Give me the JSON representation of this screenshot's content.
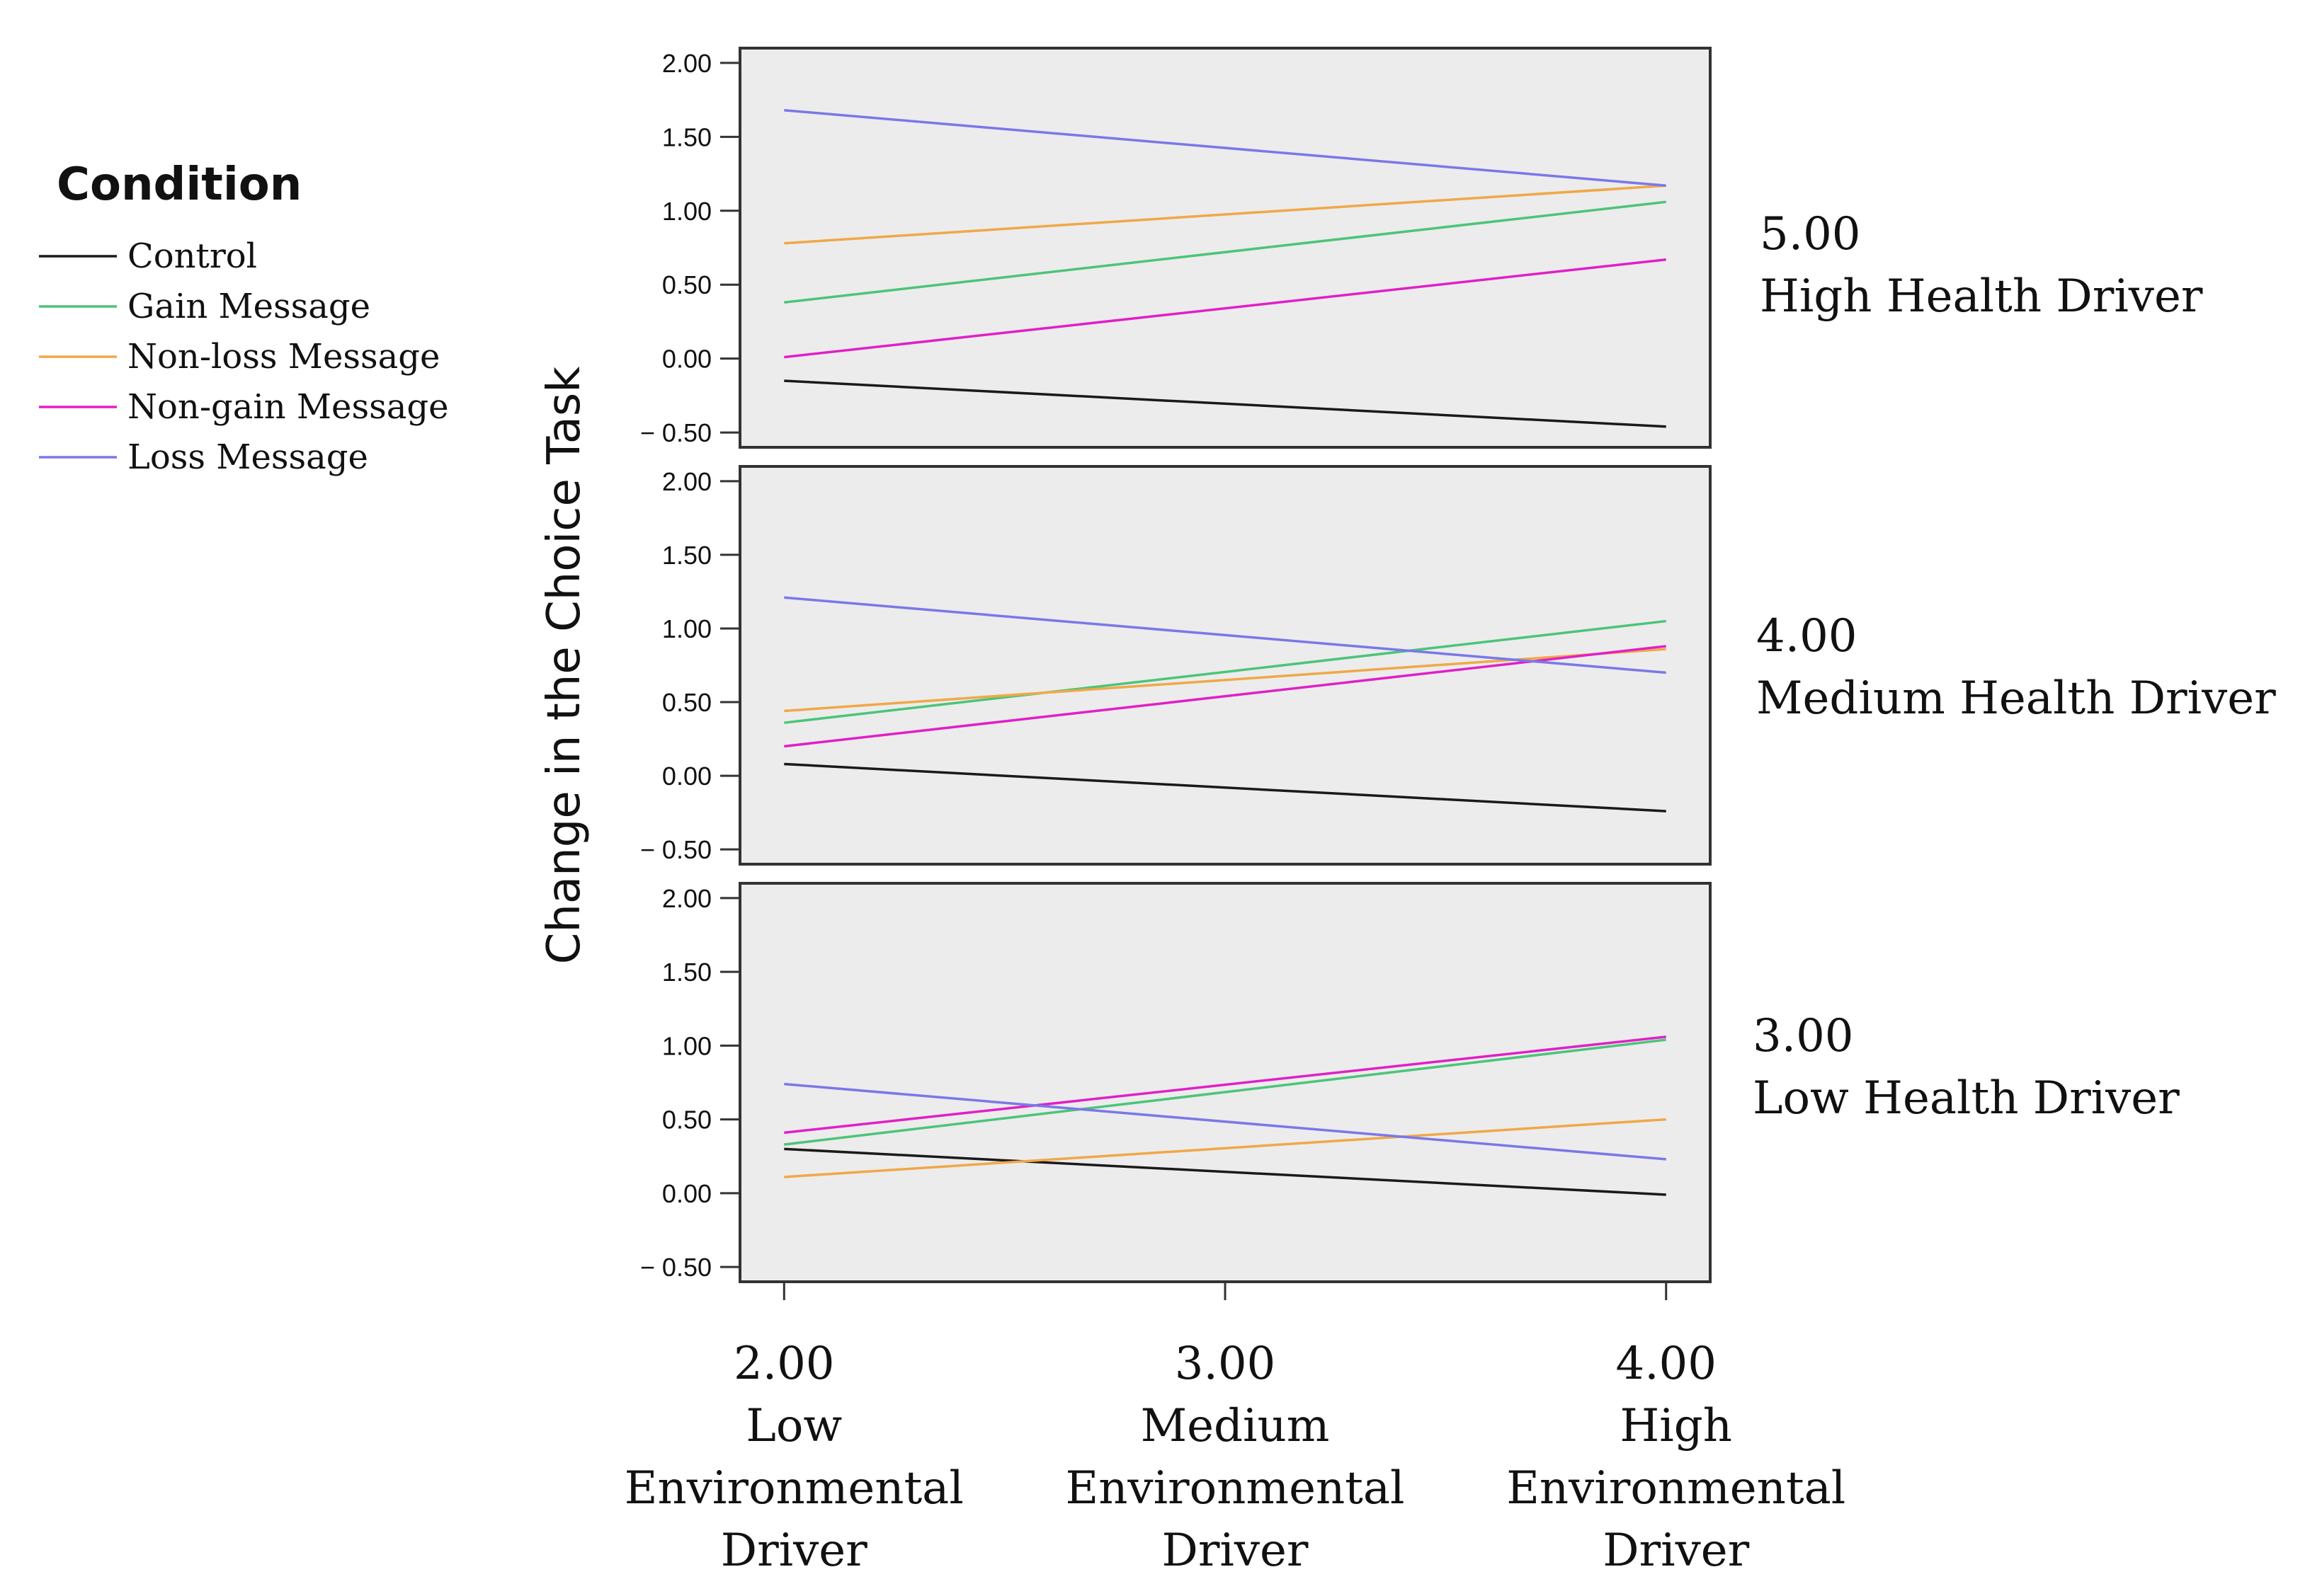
{
  "chart_data": {
    "type": "line",
    "ylabel": "Change in the Choice Task",
    "ylim": [
      -0.6,
      2.1
    ],
    "yticks": [
      "2.00",
      "1.50",
      "1.00",
      "0.50",
      "0.00",
      "− 0.50"
    ],
    "ytick_values": [
      2.0,
      1.5,
      1.0,
      0.5,
      0.0,
      -0.5
    ],
    "x": [
      2.0,
      3.0,
      4.0
    ],
    "xlim": [
      1.9,
      4.1
    ],
    "xticks": [
      {
        "value": "2.00",
        "line1": "Low",
        "line2": "Environmental",
        "line3": "Driver"
      },
      {
        "value": "3.00",
        "line1": "Medium",
        "line2": "Environmental",
        "line3": "Driver"
      },
      {
        "value": "4.00",
        "line1": "High",
        "line2": "Environmental",
        "line3": "Driver"
      }
    ],
    "legend": {
      "title": "Condition",
      "entries": [
        {
          "name": "Control",
          "color": "#1a1a1a"
        },
        {
          "name": "Gain Message",
          "color": "#4cc47a"
        },
        {
          "name": "Non-loss Message",
          "color": "#f0a848"
        },
        {
          "name": "Non-gain Message",
          "color": "#e020c8"
        },
        {
          "name": "Loss Message",
          "color": "#7a78e8"
        }
      ]
    },
    "panels": [
      {
        "value": "5.00",
        "label": "High Health Driver",
        "series": [
          {
            "name": "Control",
            "values": [
              -0.15,
              -0.46
            ]
          },
          {
            "name": "Gain Message",
            "values": [
              0.38,
              1.06
            ]
          },
          {
            "name": "Non-loss Message",
            "values": [
              0.78,
              1.17
            ]
          },
          {
            "name": "Non-gain Message",
            "values": [
              0.01,
              0.67
            ]
          },
          {
            "name": "Loss Message",
            "values": [
              1.68,
              1.17
            ]
          }
        ]
      },
      {
        "value": "4.00",
        "label": "Medium Health Driver",
        "series": [
          {
            "name": "Control",
            "values": [
              0.08,
              -0.24
            ]
          },
          {
            "name": "Gain Message",
            "values": [
              0.36,
              1.05
            ]
          },
          {
            "name": "Non-loss Message",
            "values": [
              0.44,
              0.86
            ]
          },
          {
            "name": "Non-gain Message",
            "values": [
              0.2,
              0.88
            ]
          },
          {
            "name": "Loss Message",
            "values": [
              1.21,
              0.7
            ]
          }
        ]
      },
      {
        "value": "3.00",
        "label": "Low Health Driver",
        "series": [
          {
            "name": "Control",
            "values": [
              0.3,
              -0.01
            ]
          },
          {
            "name": "Gain Message",
            "values": [
              0.33,
              1.04
            ]
          },
          {
            "name": "Non-loss Message",
            "values": [
              0.11,
              0.5
            ]
          },
          {
            "name": "Non-gain Message",
            "values": [
              0.41,
              1.06
            ]
          },
          {
            "name": "Loss Message",
            "values": [
              0.74,
              0.23
            ]
          }
        ]
      }
    ]
  }
}
